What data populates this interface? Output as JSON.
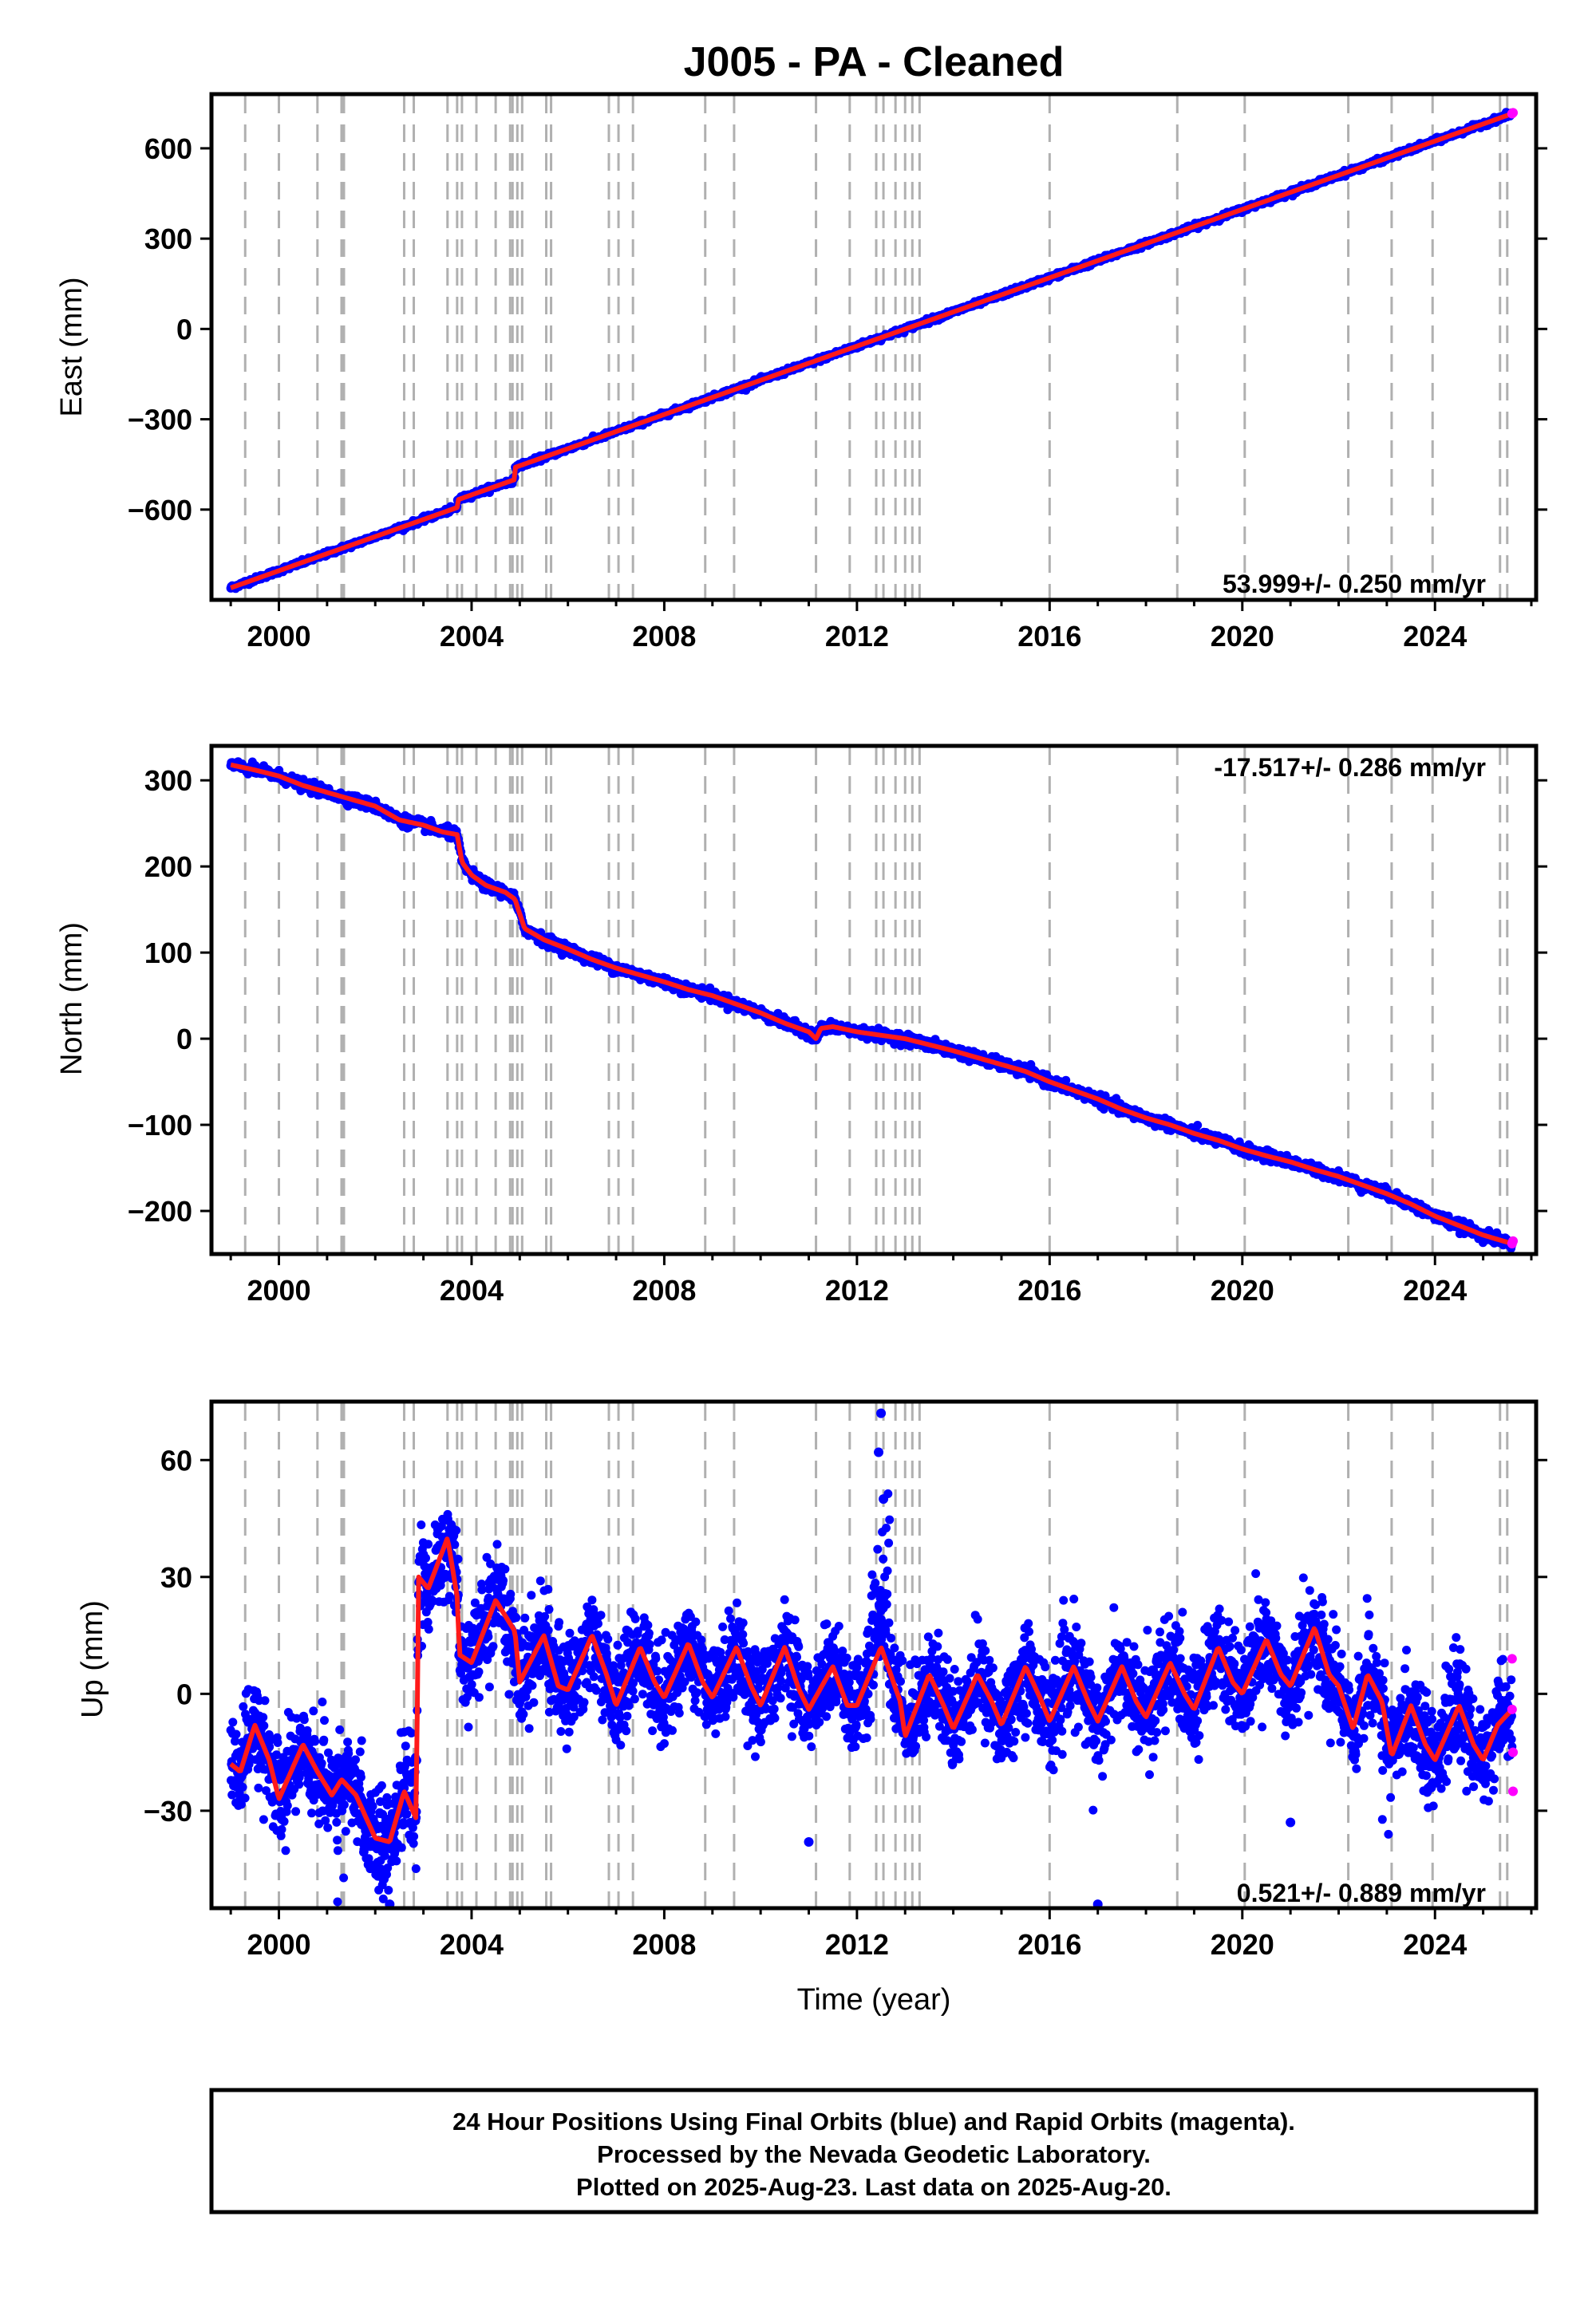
{
  "title": "J005  - PA - Cleaned",
  "footer": {
    "line1": "24 Hour Positions Using Final Orbits (blue) and Rapid Orbits (magenta).",
    "line2": "Processed by the Nevada Geodetic Laboratory.",
    "line3": "Plotted on 2025-Aug-23. Last data on 2025-Aug-20."
  },
  "colors": {
    "final_orbits": "#0000ff",
    "rapid_orbits": "#ff00ff",
    "model_fit": "#ff1a1a",
    "event_lines": "#b0b0b0"
  },
  "chart_data": [
    {
      "type": "scatter",
      "component": "east",
      "ylabel": "East (mm)",
      "xlabel": "",
      "xlim": [
        1998.6,
        2026.1
      ],
      "ylim": [
        -900,
        780
      ],
      "yticks": [
        -600,
        -300,
        0,
        300,
        600
      ],
      "xticks": [
        2000,
        2004,
        2008,
        2012,
        2016,
        2020,
        2024
      ],
      "xtick_labels": [
        "2000",
        "2004",
        "2008",
        "2012",
        "2016",
        "2020",
        "2024"
      ],
      "ytick_labels": [
        "−600",
        "−300",
        "0",
        "300",
        "600"
      ],
      "rate_label": "53.999+/- 0.250 mm/yr",
      "rate_position": "bottom-right",
      "start": [
        1999.0,
        -860
      ],
      "end": [
        2025.6,
        715
      ],
      "steps": [
        [
          2003.7,
          25
        ],
        [
          2004.9,
          40
        ]
      ],
      "noise_mm": 4,
      "seasonal": []
    },
    {
      "type": "scatter",
      "component": "north",
      "ylabel": "North (mm)",
      "xlabel": "",
      "xlim": [
        1998.6,
        2026.1
      ],
      "ylim": [
        -250,
        340
      ],
      "yticks": [
        -200,
        -100,
        0,
        100,
        200,
        300
      ],
      "xticks": [
        2000,
        2004,
        2008,
        2012,
        2016,
        2020,
        2024
      ],
      "xtick_labels": [
        "2000",
        "2004",
        "2008",
        "2012",
        "2016",
        "2020",
        "2024"
      ],
      "ytick_labels": [
        "−200",
        "−100",
        "0",
        "100",
        "200",
        "300"
      ],
      "rate_label": "-17.517+/- 0.286 mm/yr",
      "rate_position": "top-right",
      "fit_points": [
        [
          1999.0,
          318
        ],
        [
          1999.5,
          312
        ],
        [
          2000.0,
          305
        ],
        [
          2000.5,
          294
        ],
        [
          2001.0,
          286
        ],
        [
          2001.5,
          278
        ],
        [
          2002.0,
          270
        ],
        [
          2002.5,
          254
        ],
        [
          2003.0,
          248
        ],
        [
          2003.4,
          240
        ],
        [
          2003.6,
          238
        ],
        [
          2003.7,
          237
        ],
        [
          2003.8,
          205
        ],
        [
          2004.0,
          190
        ],
        [
          2004.3,
          178
        ],
        [
          2004.7,
          170
        ],
        [
          2004.9,
          162
        ],
        [
          2005.1,
          128
        ],
        [
          2005.5,
          115
        ],
        [
          2006.0,
          104
        ],
        [
          2006.5,
          92
        ],
        [
          2007.0,
          82
        ],
        [
          2007.5,
          74
        ],
        [
          2008.0,
          66
        ],
        [
          2008.5,
          57
        ],
        [
          2009.0,
          50
        ],
        [
          2009.5,
          40
        ],
        [
          2010.0,
          30
        ],
        [
          2010.5,
          18
        ],
        [
          2011.0,
          8
        ],
        [
          2011.15,
          0
        ],
        [
          2011.25,
          12
        ],
        [
          2011.5,
          14
        ],
        [
          2012.0,
          8
        ],
        [
          2012.5,
          4
        ],
        [
          2013.0,
          0
        ],
        [
          2013.5,
          -7
        ],
        [
          2014.0,
          -14
        ],
        [
          2014.5,
          -22
        ],
        [
          2015.0,
          -30
        ],
        [
          2015.5,
          -38
        ],
        [
          2016.0,
          -50
        ],
        [
          2016.5,
          -60
        ],
        [
          2017.0,
          -70
        ],
        [
          2017.5,
          -82
        ],
        [
          2018.0,
          -92
        ],
        [
          2018.5,
          -100
        ],
        [
          2019.0,
          -110
        ],
        [
          2019.5,
          -118
        ],
        [
          2020.0,
          -128
        ],
        [
          2020.5,
          -136
        ],
        [
          2021.0,
          -143
        ],
        [
          2021.5,
          -152
        ],
        [
          2022.0,
          -160
        ],
        [
          2022.5,
          -170
        ],
        [
          2023.0,
          -180
        ],
        [
          2023.5,
          -192
        ],
        [
          2024.0,
          -206
        ],
        [
          2024.5,
          -217
        ],
        [
          2025.0,
          -228
        ],
        [
          2025.6,
          -238
        ]
      ],
      "noise_mm": 3
    },
    {
      "type": "scatter",
      "component": "up",
      "ylabel": "Up (mm)",
      "xlabel": "Time (year)",
      "xlim": [
        1998.6,
        2026.1
      ],
      "ylim": [
        -55,
        75
      ],
      "yticks": [
        -30,
        0,
        30,
        60
      ],
      "xticks": [
        2000,
        2004,
        2008,
        2012,
        2016,
        2020,
        2024
      ],
      "xtick_labels": [
        "2000",
        "2004",
        "2008",
        "2012",
        "2016",
        "2020",
        "2024"
      ],
      "ytick_labels": [
        "−30",
        "0",
        "30",
        "60"
      ],
      "rate_label": "0.521+/- 0.889 mm/yr",
      "rate_position": "bottom-right",
      "fit_points": [
        [
          1999.0,
          -18
        ],
        [
          1999.2,
          -20
        ],
        [
          1999.5,
          -8
        ],
        [
          1999.8,
          -17
        ],
        [
          2000.0,
          -27
        ],
        [
          2000.5,
          -13
        ],
        [
          2000.8,
          -20
        ],
        [
          2001.1,
          -26
        ],
        [
          2001.3,
          -22
        ],
        [
          2001.6,
          -26
        ],
        [
          2002.0,
          -37
        ],
        [
          2002.3,
          -38
        ],
        [
          2002.6,
          -25
        ],
        [
          2002.85,
          -32
        ],
        [
          2002.9,
          30
        ],
        [
          2003.1,
          27
        ],
        [
          2003.5,
          40
        ],
        [
          2003.7,
          25
        ],
        [
          2003.75,
          10
        ],
        [
          2004.0,
          8
        ],
        [
          2004.5,
          24
        ],
        [
          2004.9,
          16
        ],
        [
          2005.0,
          3
        ],
        [
          2005.5,
          15
        ],
        [
          2005.8,
          2
        ],
        [
          2006.0,
          1
        ],
        [
          2006.5,
          15
        ],
        [
          2006.8,
          5
        ],
        [
          2007.0,
          -3
        ],
        [
          2007.5,
          12
        ],
        [
          2007.8,
          3
        ],
        [
          2008.0,
          -1
        ],
        [
          2008.5,
          13
        ],
        [
          2008.8,
          3
        ],
        [
          2009.0,
          -1
        ],
        [
          2009.5,
          12
        ],
        [
          2009.8,
          2
        ],
        [
          2010.0,
          -3
        ],
        [
          2010.5,
          12
        ],
        [
          2010.8,
          1
        ],
        [
          2011.0,
          -4
        ],
        [
          2011.5,
          7
        ],
        [
          2011.8,
          -3
        ],
        [
          2012.0,
          -3
        ],
        [
          2012.5,
          12
        ],
        [
          2012.9,
          -2
        ],
        [
          2013.0,
          -11
        ],
        [
          2013.5,
          5
        ],
        [
          2013.8,
          -3
        ],
        [
          2014.0,
          -9
        ],
        [
          2014.5,
          5
        ],
        [
          2014.8,
          -2
        ],
        [
          2015.0,
          -8
        ],
        [
          2015.5,
          7
        ],
        [
          2015.8,
          -1
        ],
        [
          2016.0,
          -7
        ],
        [
          2016.5,
          7
        ],
        [
          2016.8,
          -2
        ],
        [
          2017.0,
          -7
        ],
        [
          2017.5,
          7
        ],
        [
          2017.8,
          -2
        ],
        [
          2018.0,
          -6
        ],
        [
          2018.5,
          8
        ],
        [
          2018.8,
          0
        ],
        [
          2019.0,
          -4
        ],
        [
          2019.5,
          12
        ],
        [
          2019.8,
          3
        ],
        [
          2020.0,
          0
        ],
        [
          2020.5,
          14
        ],
        [
          2020.8,
          5
        ],
        [
          2021.0,
          2
        ],
        [
          2021.5,
          17
        ],
        [
          2021.8,
          5
        ],
        [
          2022.0,
          2
        ],
        [
          2022.3,
          -9
        ],
        [
          2022.6,
          5
        ],
        [
          2022.9,
          -2
        ],
        [
          2023.1,
          -16
        ],
        [
          2023.5,
          -3
        ],
        [
          2023.8,
          -13
        ],
        [
          2024.0,
          -17
        ],
        [
          2024.5,
          -3
        ],
        [
          2024.8,
          -13
        ],
        [
          2025.0,
          -17
        ],
        [
          2025.3,
          -8
        ],
        [
          2025.6,
          -4
        ]
      ],
      "noise_mm": 6,
      "outliers": [
        [
          2012.5,
          72
        ],
        [
          2012.45,
          62
        ],
        [
          2012.55,
          50
        ],
        [
          2017.0,
          -54
        ],
        [
          2002.3,
          -54
        ],
        [
          2021.0,
          -33
        ],
        [
          2011.0,
          -38
        ]
      ],
      "rapid_points": [
        [
          2025.6,
          9
        ],
        [
          2025.6,
          -4
        ],
        [
          2025.62,
          -15
        ],
        [
          2025.62,
          -25
        ]
      ]
    }
  ],
  "event_lines": [
    1999.3,
    2000.0,
    2000.8,
    2001.3,
    2001.35,
    2002.6,
    2002.8,
    2003.5,
    2003.7,
    2003.8,
    2004.1,
    2004.5,
    2004.8,
    2004.85,
    2004.95,
    2005.05,
    2005.55,
    2005.65,
    2006.85,
    2007.05,
    2007.35,
    2008.85,
    2009.45,
    2011.15,
    2011.85,
    2012.4,
    2012.55,
    2012.8,
    2013.0,
    2013.15,
    2013.3,
    2016.0,
    2018.65,
    2020.05,
    2022.2,
    2023.1,
    2023.95,
    2025.35,
    2025.5
  ]
}
